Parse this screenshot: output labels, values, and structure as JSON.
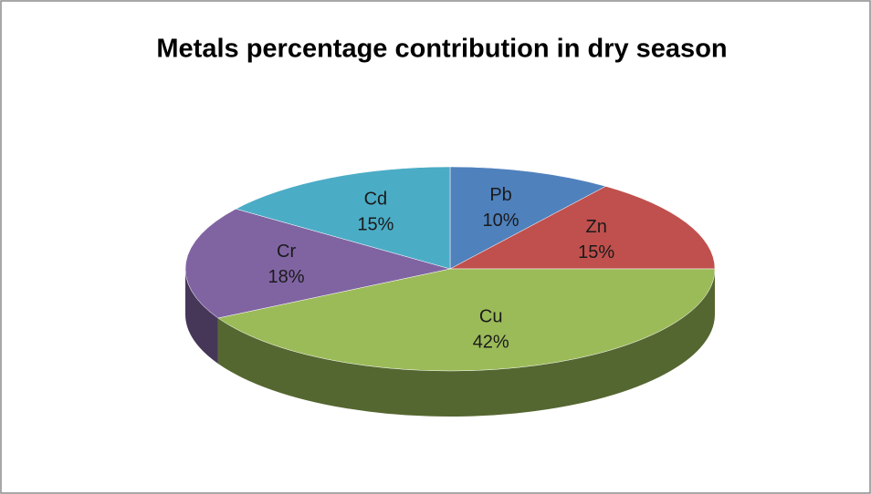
{
  "chart_data": {
    "type": "pie",
    "title": "Metals percentage contribution in dry season",
    "categories": [
      "Pb",
      "Zn",
      "Cu",
      "Cr",
      "Cd"
    ],
    "values": [
      10,
      15,
      42,
      18,
      15
    ],
    "value_labels": [
      "10%",
      "15%",
      "42%",
      "18%",
      "15%"
    ],
    "colors": [
      "#4f81bd",
      "#c0504d",
      "#9bbb59",
      "#8064a2",
      "#4bacc6"
    ]
  }
}
